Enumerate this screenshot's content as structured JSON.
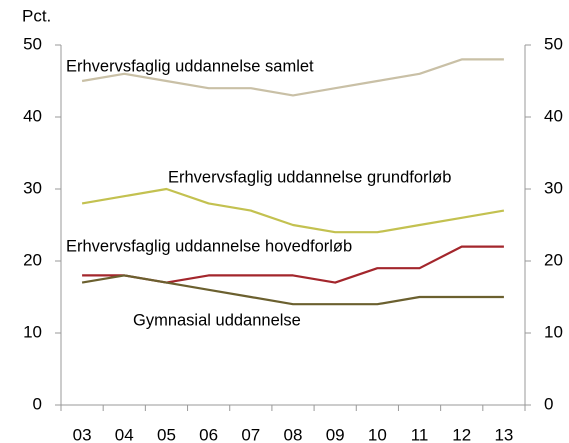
{
  "chart_data": {
    "type": "line",
    "y_label": "Pct.",
    "categories": [
      "03",
      "04",
      "05",
      "06",
      "07",
      "08",
      "09",
      "10",
      "11",
      "12",
      "13"
    ],
    "series": [
      {
        "name": "Erhvervsfaglig uddannelse samlet",
        "color": "#c9c0a6",
        "values": [
          45,
          46,
          45,
          44,
          44,
          43,
          44,
          45,
          46,
          48,
          48
        ]
      },
      {
        "name": "Erhvervsfaglig uddannelse grundforløb",
        "color": "#c3c150",
        "values": [
          28,
          29,
          30,
          28,
          27,
          25,
          24,
          24,
          25,
          26,
          27
        ]
      },
      {
        "name": "Erhvervsfaglig uddannelse hovedforløb",
        "color": "#a3262c",
        "values": [
          18,
          18,
          17,
          18,
          18,
          18,
          17,
          19,
          19,
          22,
          22
        ]
      },
      {
        "name": "Gymnasial uddannelse",
        "color": "#6b602f",
        "values": [
          17,
          18,
          17,
          16,
          15,
          14,
          14,
          14,
          15,
          15,
          15
        ]
      }
    ],
    "ylim": [
      0,
      50
    ],
    "yticks": [
      0,
      10,
      20,
      30,
      40,
      50
    ]
  }
}
